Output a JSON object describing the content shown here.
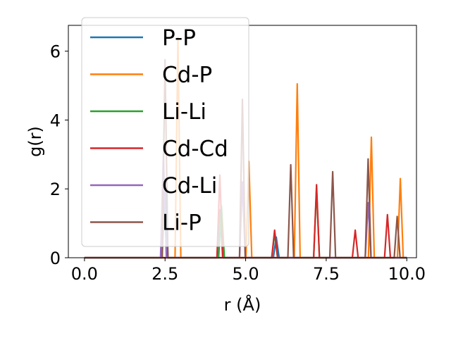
{
  "chart_data": {
    "type": "line",
    "title": "",
    "xlabel": "r (Å)",
    "ylabel": "g(r)",
    "xlim": [
      -0.5,
      10.3
    ],
    "ylim": [
      0,
      6.75
    ],
    "xticks": [
      0.0,
      2.5,
      5.0,
      7.5,
      10.0
    ],
    "xtick_labels": [
      "0.0",
      "2.5",
      "5.0",
      "7.5",
      "10.0"
    ],
    "yticks": [
      0,
      2,
      4,
      6
    ],
    "ytick_labels": [
      "0",
      "2",
      "4",
      "6"
    ],
    "grid": false,
    "legend_position": "top-left",
    "peak_halfwidth": 0.09,
    "series": [
      {
        "name": "P-P",
        "color": "#1f77b4",
        "peaks": [
          [
            2.5,
            2.3
          ],
          [
            4.2,
            1.4
          ],
          [
            5.95,
            0.6
          ]
        ]
      },
      {
        "name": "Cd-P",
        "color": "#ff7f0e",
        "peaks": [
          [
            2.9,
            6.4
          ],
          [
            5.1,
            2.8
          ],
          [
            6.6,
            5.05
          ],
          [
            8.9,
            3.5
          ],
          [
            9.8,
            2.3
          ]
        ]
      },
      {
        "name": "Li-Li",
        "color": "#2ca02c",
        "peaks": [
          [
            4.25,
            1.5
          ],
          [
            5.9,
            0.7
          ],
          [
            7.2,
            2.0
          ]
        ]
      },
      {
        "name": "Cd-Cd",
        "color": "#d62728",
        "peaks": [
          [
            4.2,
            2.4
          ],
          [
            5.9,
            0.8
          ],
          [
            7.2,
            2.12
          ],
          [
            8.4,
            0.8
          ],
          [
            9.4,
            1.25
          ]
        ]
      },
      {
        "name": "Cd-Li",
        "color": "#9467bd",
        "peaks": [
          [
            2.45,
            3.0
          ],
          [
            4.9,
            2.2
          ],
          [
            8.8,
            1.6
          ]
        ]
      },
      {
        "name": "Li-P",
        "color": "#8c564b",
        "peaks": [
          [
            2.5,
            5.75
          ],
          [
            4.9,
            4.6
          ],
          [
            6.4,
            2.7
          ],
          [
            7.7,
            2.5
          ],
          [
            8.8,
            2.87
          ],
          [
            9.7,
            1.2
          ]
        ]
      }
    ]
  }
}
